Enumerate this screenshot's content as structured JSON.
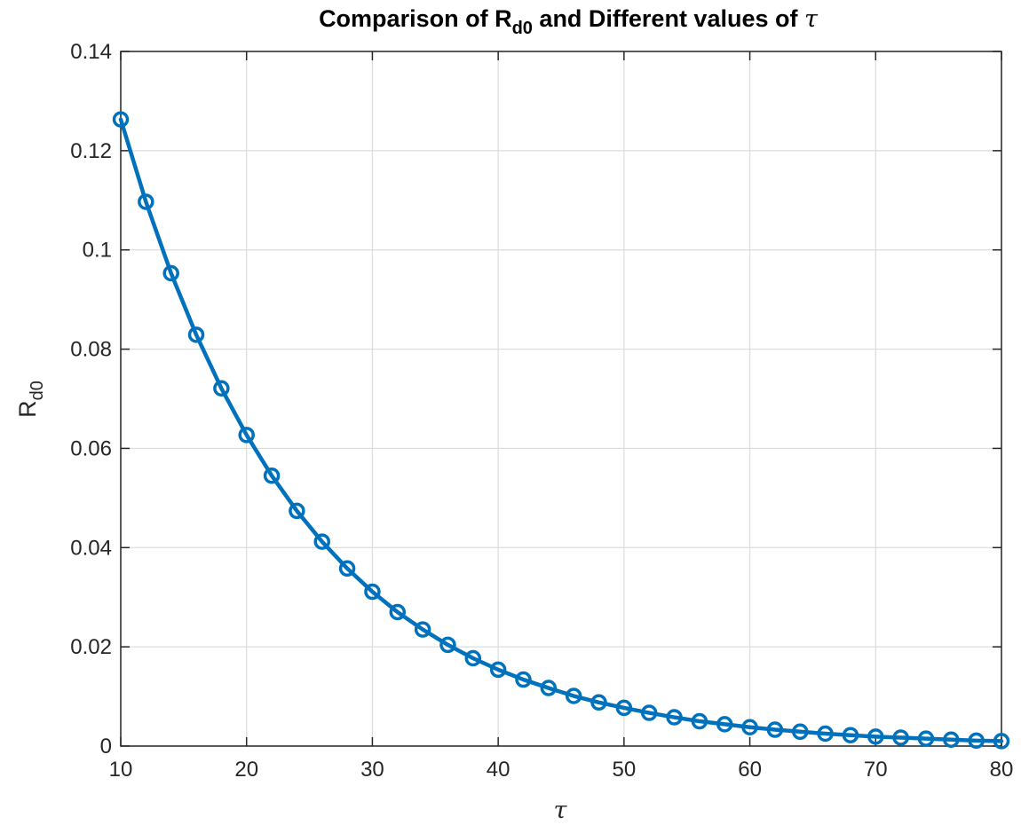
{
  "chart_data": {
    "type": "line",
    "title": {
      "prefix": "Comparison of R",
      "subscript": "d0",
      "middle": " and Different values of ",
      "symbol": "τ"
    },
    "xlabel": {
      "symbol": "τ"
    },
    "ylabel": {
      "main": "R",
      "subscript": "d0"
    },
    "xlim": [
      10,
      80
    ],
    "ylim": [
      0,
      0.14
    ],
    "x_ticks": [
      10,
      20,
      30,
      40,
      50,
      60,
      70,
      80
    ],
    "x_tick_labels": [
      "10",
      "20",
      "30",
      "40",
      "50",
      "60",
      "70",
      "80"
    ],
    "y_ticks": [
      0,
      0.02,
      0.04,
      0.06,
      0.08,
      0.1,
      0.12,
      0.14
    ],
    "y_tick_labels": [
      "0",
      "0.02",
      "0.04",
      "0.06",
      "0.08",
      "0.1",
      "0.12",
      "0.14"
    ],
    "grid": true,
    "marker": "circle",
    "series": [
      {
        "name": "R_d0",
        "color": "#0072BD",
        "x": [
          10,
          12,
          14,
          16,
          18,
          20,
          22,
          24,
          26,
          28,
          30,
          32,
          34,
          36,
          38,
          40,
          42,
          44,
          46,
          48,
          50,
          52,
          54,
          56,
          58,
          60,
          62,
          64,
          66,
          68,
          70,
          72,
          74,
          76,
          78,
          80
        ],
        "y": [
          0.1263,
          0.1097,
          0.0953,
          0.0829,
          0.0721,
          0.0627,
          0.0545,
          0.0474,
          0.0412,
          0.0358,
          0.0311,
          0.027,
          0.0235,
          0.0204,
          0.0177,
          0.0154,
          0.0134,
          0.0117,
          0.0101,
          0.0088,
          0.0077,
          0.0067,
          0.0058,
          0.005,
          0.0044,
          0.0038,
          0.0033,
          0.0029,
          0.0025,
          0.0022,
          0.0019,
          0.0017,
          0.0015,
          0.0013,
          0.0011,
          0.001
        ]
      }
    ],
    "colors": {
      "axis": "#262626",
      "grid": "#dcdcdc",
      "background": "#ffffff"
    }
  }
}
